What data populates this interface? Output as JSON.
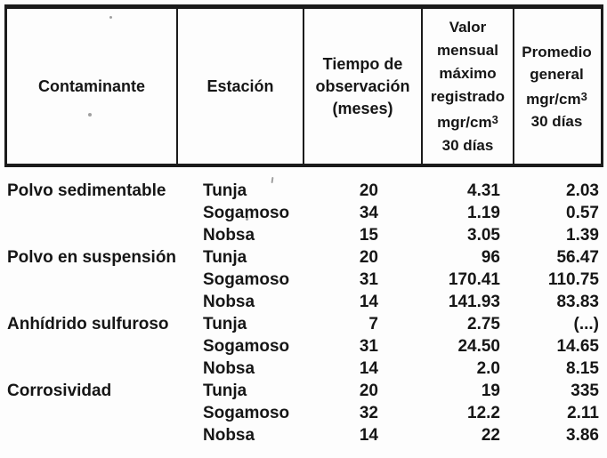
{
  "colors": {
    "ink": "#161616",
    "paper": "#fdfdfd",
    "border": "#1b1b1b"
  },
  "table": {
    "columns": [
      {
        "key": "contaminante",
        "lines": [
          {
            "text": "Contaminante"
          }
        ]
      },
      {
        "key": "estacion",
        "lines": [
          {
            "text": "Estación"
          }
        ]
      },
      {
        "key": "tiempo",
        "lines": [
          {
            "text": "Tiempo de"
          },
          {
            "text": "observación"
          },
          {
            "text": "(meses)"
          }
        ]
      },
      {
        "key": "valor",
        "lines": [
          {
            "text": "Valor"
          },
          {
            "text": "mensual"
          },
          {
            "text": "máximo"
          },
          {
            "text": "registrado"
          },
          {
            "text": "mgr/cm",
            "sup": "3"
          },
          {
            "text": "30 días"
          }
        ]
      },
      {
        "key": "promedio",
        "lines": [
          {
            "text": "Promedio"
          },
          {
            "text": "general"
          },
          {
            "text": "mgr/cm",
            "sup": "3"
          },
          {
            "text": "30 días"
          }
        ]
      }
    ],
    "rows": [
      {
        "contaminante": "Polvo sedimentable",
        "estacion": "Tunja",
        "tiempo": "20",
        "valor": "4.31",
        "promedio": "2.03"
      },
      {
        "contaminante": "",
        "estacion": "Sogamoso",
        "tiempo": "34",
        "valor": "1.19",
        "promedio": "0.57"
      },
      {
        "contaminante": "",
        "estacion": "Nobsa",
        "tiempo": "15",
        "valor": "3.05",
        "promedio": "1.39"
      },
      {
        "contaminante": "Polvo en suspensión",
        "estacion": "Tunja",
        "tiempo": "20",
        "valor": "96",
        "promedio": "56.47"
      },
      {
        "contaminante": "",
        "estacion": "Sogamoso",
        "tiempo": "31",
        "valor": "170.41",
        "promedio": "110.75"
      },
      {
        "contaminante": "",
        "estacion": "Nobsa",
        "tiempo": "14",
        "valor": "141.93",
        "promedio": "83.83"
      },
      {
        "contaminante": "Anhídrido sulfuroso",
        "estacion": "Tunja",
        "tiempo": "7",
        "valor": "2.75",
        "promedio": "(...)"
      },
      {
        "contaminante": "",
        "estacion": "Sogamoso",
        "tiempo": "31",
        "valor": "24.50",
        "promedio": "14.65"
      },
      {
        "contaminante": "",
        "estacion": "Nobsa",
        "tiempo": "14",
        "valor": "2.0",
        "promedio": "8.15"
      },
      {
        "contaminante": "Corrosividad",
        "estacion": "Tunja",
        "tiempo": "20",
        "valor": "19",
        "promedio": "335"
      },
      {
        "contaminante": "",
        "estacion": "Sogamoso",
        "tiempo": "32",
        "valor": "12.2",
        "promedio": "2.11"
      },
      {
        "contaminante": "",
        "estacion": "Nobsa",
        "tiempo": "14",
        "valor": "22",
        "promedio": "3.86"
      }
    ]
  }
}
